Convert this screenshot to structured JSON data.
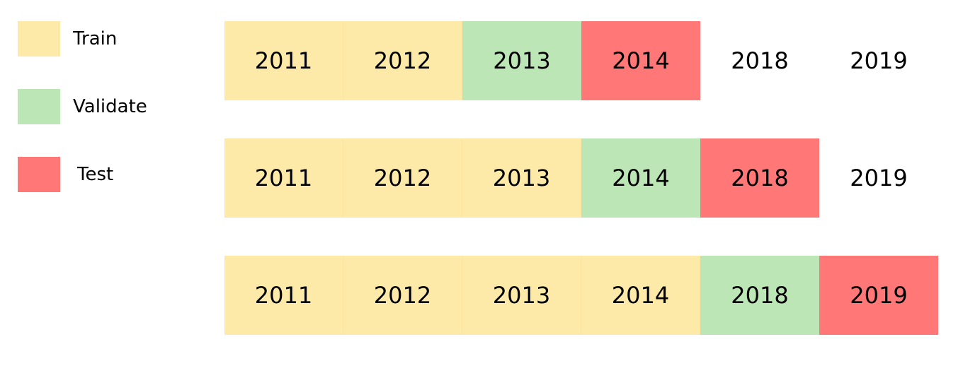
{
  "colors": {
    "train": "#fdeaa8",
    "validate": "#bde6b6",
    "test": "#ff7777"
  },
  "legend": [
    {
      "key": "train",
      "label": "Train"
    },
    {
      "key": "validate",
      "label": "Validate"
    },
    {
      "key": "test",
      "label": "Test"
    }
  ],
  "rows": [
    {
      "cells": [
        {
          "year": "2011",
          "role": "train"
        },
        {
          "year": "2012",
          "role": "train"
        },
        {
          "year": "2013",
          "role": "validate"
        },
        {
          "year": "2014",
          "role": "test"
        },
        {
          "year": "2018",
          "role": "none"
        },
        {
          "year": "2019",
          "role": "none"
        }
      ]
    },
    {
      "cells": [
        {
          "year": "2011",
          "role": "train"
        },
        {
          "year": "2012",
          "role": "train"
        },
        {
          "year": "2013",
          "role": "train"
        },
        {
          "year": "2014",
          "role": "validate"
        },
        {
          "year": "2018",
          "role": "test"
        },
        {
          "year": "2019",
          "role": "none"
        }
      ]
    },
    {
      "cells": [
        {
          "year": "2011",
          "role": "train"
        },
        {
          "year": "2012",
          "role": "train"
        },
        {
          "year": "2013",
          "role": "train"
        },
        {
          "year": "2014",
          "role": "train"
        },
        {
          "year": "2018",
          "role": "validate"
        },
        {
          "year": "2019",
          "role": "test"
        }
      ]
    }
  ]
}
